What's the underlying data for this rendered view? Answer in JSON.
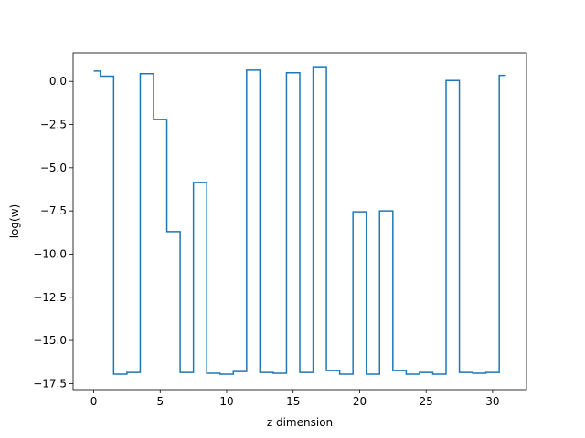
{
  "chart_data": {
    "type": "line",
    "step": "mid",
    "title": "",
    "xlabel": "z dimension",
    "ylabel": "log(w)",
    "xlim": [
      -1.55,
      32.55
    ],
    "ylim": [
      -17.85,
      1.65
    ],
    "xticks": [
      0,
      5,
      10,
      15,
      20,
      25,
      30
    ],
    "xtick_labels": [
      "0",
      "5",
      "10",
      "15",
      "20",
      "25",
      "30"
    ],
    "yticks": [
      0.0,
      -2.5,
      -5.0,
      -7.5,
      -10.0,
      -12.5,
      -15.0,
      -17.5
    ],
    "ytick_labels": [
      "0.0",
      "−2.5",
      "−5.0",
      "−7.5",
      "−10.0",
      "−12.5",
      "−15.0",
      "−17.5"
    ],
    "grid": false,
    "series": [
      {
        "color": "#1f77b4",
        "x": [
          0,
          1,
          2,
          3,
          4,
          5,
          6,
          7,
          8,
          9,
          10,
          11,
          12,
          13,
          14,
          15,
          16,
          17,
          18,
          19,
          20,
          21,
          22,
          23,
          24,
          25,
          26,
          27,
          28,
          29,
          30,
          31
        ],
        "y": [
          0.6,
          0.3,
          -16.95,
          -16.85,
          0.45,
          -2.2,
          -8.7,
          -16.85,
          -5.85,
          -16.9,
          -16.95,
          -16.8,
          0.65,
          -16.85,
          -16.9,
          0.5,
          -16.85,
          0.85,
          -16.75,
          -16.95,
          -7.55,
          -16.95,
          -7.5,
          -16.75,
          -16.95,
          -16.85,
          -16.95,
          0.05,
          -16.85,
          -16.9,
          -16.85,
          0.35
        ]
      }
    ]
  }
}
